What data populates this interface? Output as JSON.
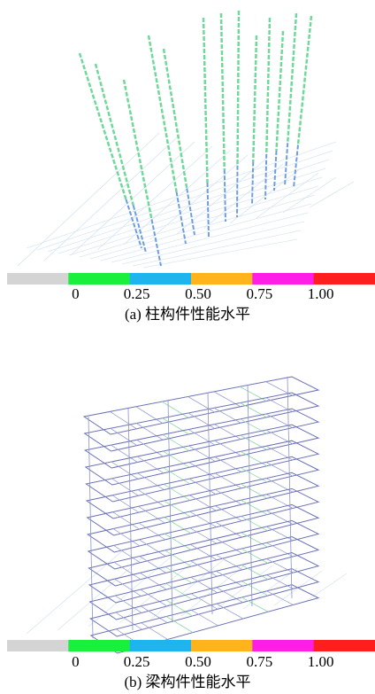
{
  "panels": [
    {
      "caption": "(a)  柱构件性能水平",
      "colorbar": {
        "colors": [
          "#d4d4d4",
          "#19f03c",
          "#1eb4ee",
          "#ffb41e",
          "#ff1ee6",
          "#ff1e1e"
        ],
        "labels": [
          "0",
          "0.25",
          "0.50",
          "0.75",
          "1.00"
        ]
      }
    },
    {
      "caption": "(b)  梁构件性能水平",
      "colorbar": {
        "colors": [
          "#d4d4d4",
          "#19f03c",
          "#1eb4ee",
          "#ffb41e",
          "#ff1ee6",
          "#ff1e1e"
        ],
        "labels": [
          "0",
          "0.25",
          "0.50",
          "0.75",
          "1.00"
        ]
      }
    }
  ]
}
